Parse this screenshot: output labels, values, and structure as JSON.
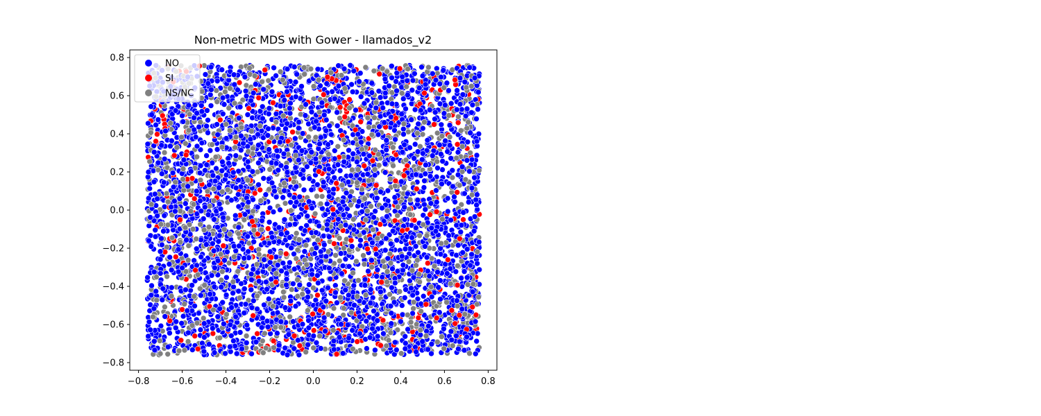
{
  "chart_data": {
    "type": "scatter",
    "title": "Non-metric MDS with Gower - llamados_v2",
    "xlabel": "",
    "ylabel": "",
    "xlim": [
      -0.84,
      0.84
    ],
    "ylim": [
      -0.84,
      0.84
    ],
    "xticks": [
      -0.8,
      -0.6,
      -0.4,
      -0.2,
      0.0,
      0.2,
      0.4,
      0.6,
      0.8
    ],
    "yticks": [
      -0.8,
      -0.6,
      -0.4,
      -0.2,
      0.0,
      0.2,
      0.4,
      0.6,
      0.8
    ],
    "xtick_labels": [
      "−0.8",
      "−0.6",
      "−0.4",
      "−0.2",
      "0.0",
      "0.2",
      "0.4",
      "0.6",
      "0.8"
    ],
    "ytick_labels": [
      "−0.8",
      "−0.6",
      "−0.4",
      "−0.2",
      "0.0",
      "0.2",
      "0.4",
      "0.6",
      "0.8"
    ],
    "grid": false,
    "legend_position": "upper-left",
    "point_extent": {
      "x": [
        -0.76,
        0.76
      ],
      "y": [
        -0.76,
        0.76
      ]
    },
    "series": [
      {
        "name": "NO",
        "color": "#0000ff",
        "count": 3600
      },
      {
        "name": "SI",
        "color": "#ff0000",
        "count": 450
      },
      {
        "name": "NS/NC",
        "color": "#808080",
        "count": 1500
      }
    ]
  }
}
